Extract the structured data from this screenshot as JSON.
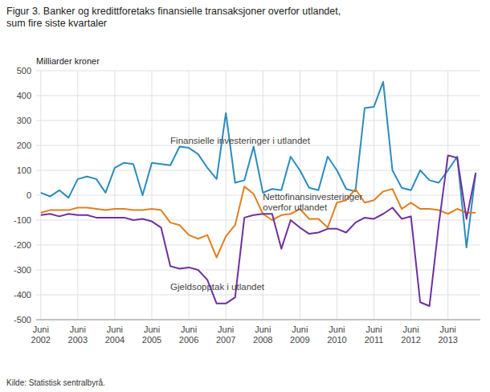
{
  "chart_data": {
    "type": "line",
    "title": "Figur 3. Banker og kredittforetaks finansielle transaksjoner overfor utlandet,\nsum fire siste kvartaler",
    "ylabel": "Milliarder kroner",
    "source": "Kilde: Statistisk sentralbyrå.",
    "categories": [
      "Juni\n2002",
      null,
      null,
      null,
      "Juni\n2003",
      null,
      null,
      null,
      "Juni\n2004",
      null,
      null,
      null,
      "Juni\n2005",
      null,
      null,
      null,
      "Juni\n2006",
      null,
      null,
      null,
      "Juni\n2007",
      null,
      null,
      null,
      "Juni\n2008",
      null,
      null,
      null,
      "Juni\n2009",
      null,
      null,
      null,
      "Juni\n2010",
      null,
      null,
      null,
      "Juni\n2011",
      null,
      null,
      null,
      "Juni\n2012",
      null,
      null,
      null,
      "Juni\n2013",
      null,
      null,
      null
    ],
    "series": [
      {
        "color": "#2b8cbe",
        "values": [
          10,
          -5,
          20,
          -10,
          65,
          75,
          65,
          10,
          110,
          130,
          125,
          0,
          130,
          125,
          120,
          195,
          190,
          165,
          110,
          65,
          330,
          50,
          60,
          195,
          10,
          25,
          20,
          155,
          100,
          30,
          20,
          155,
          100,
          25,
          15,
          350,
          355,
          455,
          100,
          30,
          20,
          100,
          60,
          50,
          100,
          155,
          -210,
          90
        ]
      },
      {
        "color": "#e08020",
        "values": [
          -70,
          -60,
          -60,
          -60,
          -50,
          -50,
          -55,
          -60,
          -55,
          -55,
          -60,
          -60,
          -55,
          -60,
          -110,
          -120,
          -160,
          -175,
          -160,
          -250,
          -165,
          -120,
          35,
          5,
          -75,
          -100,
          -80,
          -75,
          -55,
          -95,
          -95,
          -130,
          -30,
          -20,
          25,
          -30,
          -20,
          15,
          25,
          -55,
          -30,
          -55,
          -55,
          -60,
          -75,
          -55,
          -70,
          -70
        ]
      },
      {
        "color": "#7030a0",
        "values": [
          -80,
          -75,
          -85,
          -75,
          -80,
          -80,
          -90,
          -90,
          -90,
          -90,
          -100,
          -95,
          -105,
          -130,
          -285,
          -295,
          -290,
          -300,
          -340,
          -435,
          -435,
          -410,
          -90,
          -80,
          -75,
          -75,
          -215,
          -100,
          -130,
          -155,
          -150,
          -135,
          -135,
          -150,
          -110,
          -90,
          -95,
          -75,
          -50,
          -95,
          -85,
          -430,
          -445,
          -120,
          160,
          150,
          -95,
          90
        ]
      }
    ],
    "annotations": [
      {
        "text": "Finansielle investeringer i utlandet",
        "x": 14,
        "y": 205
      },
      {
        "text": "Nettofinansinvesteringer\noverfor utlandet",
        "x": 24,
        "y": -60
      },
      {
        "text": "Gjeldsopptak i utlandet",
        "x": 14,
        "y": -380
      }
    ],
    "ylim": [
      -500,
      500
    ],
    "yticks": [
      -500,
      -400,
      -300,
      -200,
      -100,
      0,
      100,
      200,
      300,
      400,
      500
    ],
    "grid": true
  }
}
